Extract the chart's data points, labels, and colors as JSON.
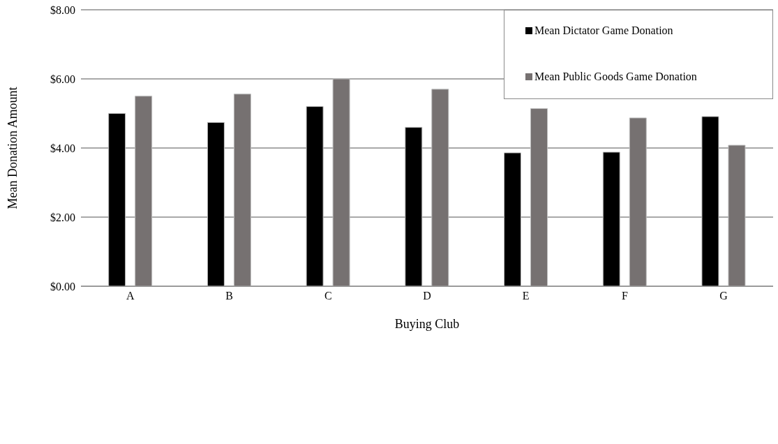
{
  "chart_data": {
    "type": "bar",
    "xlabel": "Buying Club",
    "ylabel": "Mean Donation Amount",
    "categories": [
      "A",
      "B",
      "C",
      "D",
      "E",
      "F",
      "G"
    ],
    "series": [
      {
        "name": "Mean Dictator Game Donation",
        "color": "#000000",
        "values": [
          5.0,
          4.74,
          5.2,
          4.6,
          3.86,
          3.88,
          4.91
        ]
      },
      {
        "name": "Mean Public Goods Game Donation",
        "color": "#767171",
        "values": [
          5.5,
          5.56,
          6.0,
          5.7,
          5.14,
          4.87,
          4.08
        ]
      }
    ],
    "ylim": [
      0,
      8
    ],
    "yticks": [
      {
        "value": 0,
        "label": "$0.00"
      },
      {
        "value": 2,
        "label": "$2.00"
      },
      {
        "value": 4,
        "label": "$4.00"
      },
      {
        "value": 6,
        "label": "$6.00"
      },
      {
        "value": 8,
        "label": "$8.00"
      }
    ],
    "grid": "y",
    "legend": "top right"
  }
}
